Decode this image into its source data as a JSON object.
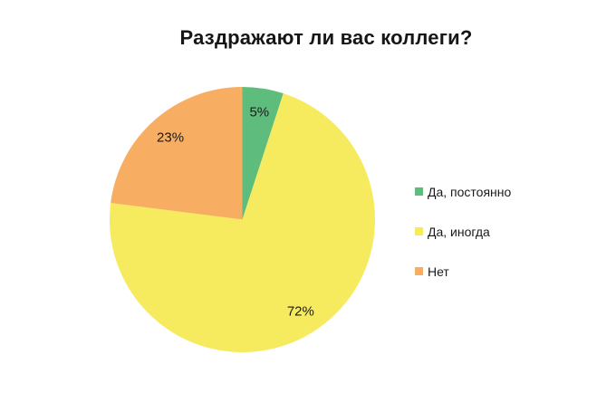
{
  "chart_data": {
    "type": "pie",
    "title": "Раздражают ли вас коллеги?",
    "categories": [
      "Да, постоянно",
      "Да, иногда",
      "Нет"
    ],
    "values": [
      5,
      72,
      23
    ],
    "slices": [
      {
        "label": "Да, постоянно",
        "value": 5,
        "percent_label": "5%",
        "color": "#5EBD7C"
      },
      {
        "label": "Да, иногда",
        "value": 72,
        "percent_label": "72%",
        "color": "#F6EB5F"
      },
      {
        "label": "Нет",
        "value": 23,
        "percent_label": "23%",
        "color": "#F7AE62"
      }
    ],
    "start_angle_deg": 0,
    "direction": "clockwise",
    "legend_position": "right",
    "label_radius_fraction": 0.82,
    "background_color": "#ffffff",
    "title_color": "#161616"
  }
}
